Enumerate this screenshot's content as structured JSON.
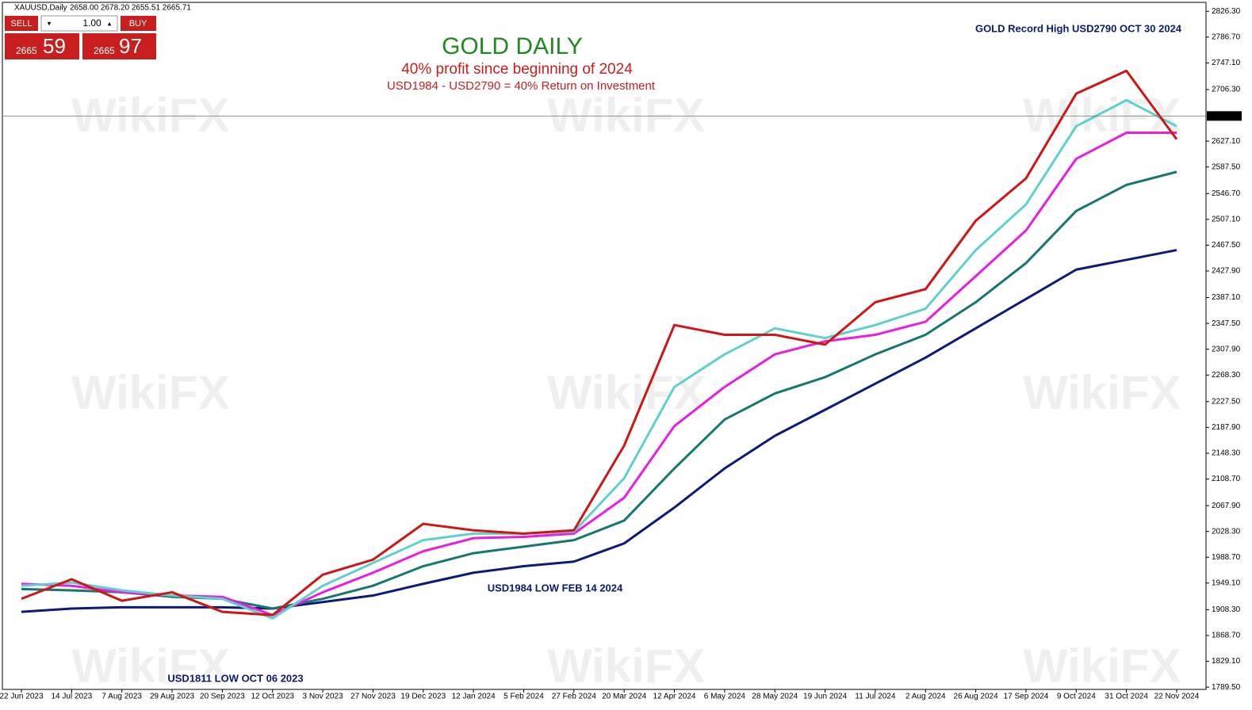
{
  "header": {
    "symbol": "XAUUSD,Daily",
    "ohlc": "2658.00 2678.20 2655.51 2665.71"
  },
  "trade_panel": {
    "sell": "SELL",
    "buy": "BUY",
    "lot": "1.00",
    "sell_big": "2665",
    "sell_small": "59",
    "buy_big": "2665",
    "buy_small": "97"
  },
  "watermark": "WikiFX",
  "chart_data": {
    "type": "line",
    "title": "GOLD DAILY",
    "subtitle": [
      "40% profit since beginning of 2024",
      "USD1984 - USD2790 = 40% Return on Investment"
    ],
    "annotations": [
      "GOLD Record High USD2790 OCT 30 2024",
      "USD1984 LOW FEB 14 2024",
      "USD1811 LOW OCT 06 2023"
    ],
    "categories": [
      "22 Jun 2023",
      "14 Jul 2023",
      "7 Aug 2023",
      "29 Aug 2023",
      "20 Sep 2023",
      "12 Oct 2023",
      "3 Nov 2023",
      "27 Nov 2023",
      "19 Dec 2023",
      "12 Jan 2024",
      "5 Feb 2024",
      "27 Feb 2024",
      "20 Mar 2024",
      "12 Apr 2024",
      "6 May 2024",
      "28 May 2024",
      "19 Jun 2024",
      "11 Jul 2024",
      "2 Aug 2024",
      "26 Aug 2024",
      "17 Sep 2024",
      "9 Oct 2024",
      "31 Oct 2024",
      "22 Nov 2024"
    ],
    "series": [
      {
        "color": "#0d1a7a",
        "values": [
          1905,
          1910,
          1912,
          1912,
          1912,
          1910,
          1920,
          1930,
          1948,
          1965,
          1975,
          1982,
          2010,
          2065,
          2125,
          2175,
          2215,
          2255,
          2295,
          2340,
          2385,
          2430,
          2445,
          2460
        ]
      },
      {
        "color": "#16776e",
        "values": [
          1940,
          1938,
          1935,
          1928,
          1925,
          1910,
          1925,
          1945,
          1975,
          1995,
          2005,
          2015,
          2045,
          2125,
          2200,
          2240,
          2265,
          2300,
          2330,
          2380,
          2440,
          2520,
          2560,
          2580
        ]
      },
      {
        "color": "#e81ee0",
        "values": [
          1948,
          1945,
          1935,
          1930,
          1928,
          1900,
          1935,
          1965,
          1998,
          2018,
          2020,
          2025,
          2080,
          2190,
          2250,
          2300,
          2320,
          2330,
          2350,
          2420,
          2490,
          2600,
          2640,
          2640
        ]
      },
      {
        "color": "#5fd0cc",
        "values": [
          1945,
          1950,
          1938,
          1930,
          1925,
          1895,
          1945,
          1980,
          2015,
          2025,
          2025,
          2028,
          2110,
          2250,
          2300,
          2340,
          2325,
          2345,
          2370,
          2460,
          2530,
          2650,
          2690,
          2650
        ]
      },
      {
        "color": "#d01515",
        "values": [
          1925,
          1955,
          1922,
          1935,
          1905,
          1900,
          1962,
          1985,
          2040,
          2030,
          2025,
          2030,
          2160,
          2345,
          2330,
          2330,
          2315,
          2380,
          2400,
          2505,
          2570,
          2700,
          2735,
          2630
        ]
      }
    ],
    "current_price": 2665.71,
    "ylim": [
      1786,
      2840
    ],
    "yticks": [
      {
        "value": 1789.5,
        "label": "1789.50"
      },
      {
        "value": 1829.1,
        "label": "1829.10"
      },
      {
        "value": 1868.7,
        "label": "1868.70"
      },
      {
        "value": 1908.3,
        "label": "1908.30"
      },
      {
        "value": 1949.1,
        "label": "1949.10"
      },
      {
        "value": 1988.7,
        "label": "1988.70"
      },
      {
        "value": 2028.3,
        "label": "2028.30"
      },
      {
        "value": 2067.9,
        "label": "2067.90"
      },
      {
        "value": 2108.7,
        "label": "2108.70"
      },
      {
        "value": 2148.3,
        "label": "2148.30"
      },
      {
        "value": 2187.9,
        "label": "2187.90"
      },
      {
        "value": 2227.5,
        "label": "2227.50"
      },
      {
        "value": 2268.3,
        "label": "2268.30"
      },
      {
        "value": 2307.9,
        "label": "2307.90"
      },
      {
        "value": 2347.5,
        "label": "2347.50"
      },
      {
        "value": 2387.1,
        "label": "2387.10"
      },
      {
        "value": 2427.9,
        "label": "2427.90"
      },
      {
        "value": 2467.5,
        "label": "2467.50"
      },
      {
        "value": 2507.1,
        "label": "2507.10"
      },
      {
        "value": 2546.7,
        "label": "2546.70"
      },
      {
        "value": 2587.5,
        "label": "2587.50"
      },
      {
        "value": 2627.1,
        "label": "2627.10"
      },
      {
        "value": 2706.3,
        "label": "2706.30"
      },
      {
        "value": 2747.1,
        "label": "2747.10"
      },
      {
        "value": 2786.7,
        "label": "2786.70"
      },
      {
        "value": 2826.3,
        "label": "2826.30"
      }
    ]
  }
}
